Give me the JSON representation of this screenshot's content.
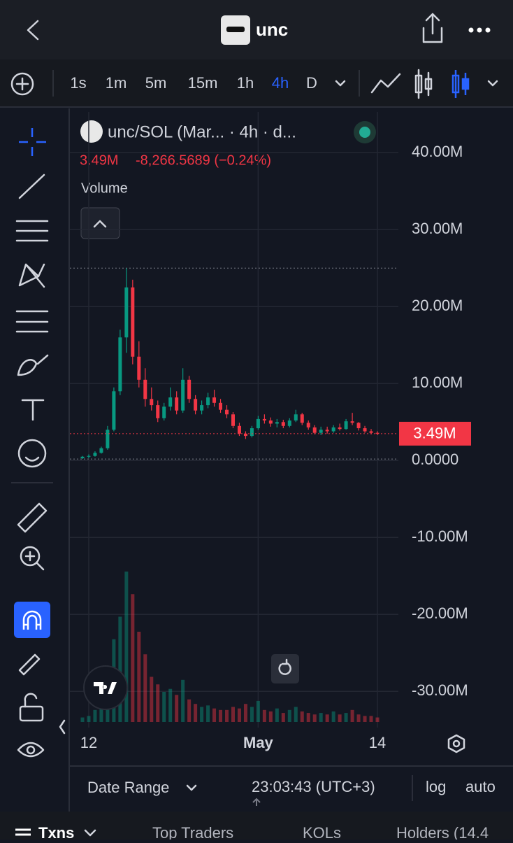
{
  "header": {
    "title": "unc"
  },
  "toolbar": {
    "intervals": [
      "1s",
      "1m",
      "5m",
      "15m",
      "1h",
      "4h",
      "D"
    ],
    "active_interval": 5
  },
  "chart_data": {
    "type": "candlestick",
    "title": "unc/SOL (Mar...  · 4h · d...",
    "last_price": {
      "value": 3.49,
      "label": "3.49M"
    },
    "change": "-8,266.5689 (−0.24%)",
    "volume_label": "Volume",
    "categories": [
      null,
      "12",
      null,
      null,
      null,
      null,
      null,
      null,
      null,
      null,
      null,
      null,
      null,
      null,
      null,
      null,
      null,
      null,
      null,
      null,
      null,
      null,
      null,
      null,
      null,
      null,
      null,
      null,
      "May",
      null,
      null,
      null,
      null,
      null,
      null,
      null,
      null,
      null,
      null,
      null,
      null,
      null,
      null,
      null,
      null,
      null,
      null,
      "14"
    ],
    "open": [
      0.3,
      0.5,
      0.6,
      1.0,
      1.6,
      4.0,
      9.0,
      16,
      22.5,
      13.5,
      10.5,
      8,
      7.2,
      5.5,
      7.0,
      8.2,
      6.5,
      10.5,
      8,
      6.5,
      7.2,
      8.2,
      7.5,
      6.6,
      6,
      4.5,
      3.5,
      3.2,
      4.2,
      5.4,
      5.2,
      4.8,
      5,
      4.5,
      5.2,
      6,
      4.9,
      4.3,
      3.6,
      4,
      3.8,
      4.3,
      4.1,
      5.1,
      4.9,
      4.2,
      3.8,
      3.6
    ],
    "high": [
      0.6,
      0.8,
      1.2,
      1.8,
      4.5,
      9.5,
      17,
      25,
      23.5,
      15.5,
      12,
      9.5,
      7.8,
      7.5,
      9.5,
      9,
      12,
      11,
      8.5,
      7.8,
      8.8,
      9.2,
      8,
      7.2,
      6.3,
      4.9,
      3.8,
      4.5,
      5.8,
      6,
      5.6,
      5.4,
      5.3,
      5.5,
      6.6,
      6.2,
      5.2,
      4.6,
      4.4,
      4.4,
      4.6,
      4.8,
      5.4,
      6.2,
      5,
      4.5,
      4.1,
      3.8
    ],
    "low": [
      0.2,
      0.3,
      0.5,
      0.9,
      1.4,
      3.8,
      8.5,
      14,
      12.5,
      9.5,
      7,
      6.5,
      5,
      5.2,
      6.5,
      6,
      6.2,
      7.5,
      6,
      6,
      6.8,
      7,
      6.2,
      5.5,
      4.2,
      3.2,
      2.8,
      3,
      4,
      4.8,
      4.4,
      4.3,
      4.2,
      4.3,
      5,
      4.6,
      4,
      3.4,
      3.3,
      3.5,
      3.6,
      3.9,
      4,
      4.6,
      3.9,
      3.6,
      3.4,
      3.3
    ],
    "close": [
      0.5,
      0.6,
      1.0,
      1.6,
      4.0,
      9.0,
      16,
      22.5,
      13.5,
      10.5,
      8,
      7.2,
      5.5,
      7.0,
      8.2,
      6.5,
      10.5,
      8,
      6.5,
      7.2,
      8.2,
      7.5,
      6.6,
      6,
      4.5,
      3.5,
      3.2,
      4.2,
      5.4,
      5.2,
      4.8,
      5,
      4.5,
      5.2,
      6,
      4.9,
      4.3,
      3.6,
      4,
      3.8,
      4.3,
      4.1,
      5.1,
      4.9,
      4.2,
      3.8,
      3.6,
      3.49
    ],
    "volume": [
      3,
      4,
      8,
      12,
      30,
      55,
      70,
      100,
      85,
      60,
      45,
      30,
      25,
      20,
      22,
      18,
      28,
      15,
      12,
      10,
      11,
      9,
      8,
      8,
      10,
      9,
      12,
      10,
      14,
      8,
      7,
      9,
      6,
      8,
      10,
      7,
      6,
      5,
      6,
      5,
      7,
      5,
      6,
      8,
      5,
      4,
      4,
      3
    ],
    "up_color": "#089981",
    "down_color": "#f23645",
    "ylim": [
      -34.7,
      45.3
    ],
    "yticks": [
      {
        "value": 40,
        "label": "40.00M"
      },
      {
        "value": 30,
        "label": "30.00M"
      },
      {
        "value": 20,
        "label": "20.00M"
      },
      {
        "value": 10,
        "label": "10.00M"
      },
      {
        "value": 0,
        "label": "0.0000"
      },
      {
        "value": -10,
        "label": "-10.00M"
      },
      {
        "value": -20,
        "label": "-20.00M"
      },
      {
        "value": -30,
        "label": "-30.00M"
      }
    ],
    "grid": true
  },
  "footer": {
    "date_range": "Date Range",
    "time": "23:03:43 (UTC+3)",
    "log": "log",
    "auto": "auto"
  },
  "tabs": [
    "Txns",
    "Top Traders",
    "KOLs",
    "Holders (14.4"
  ]
}
